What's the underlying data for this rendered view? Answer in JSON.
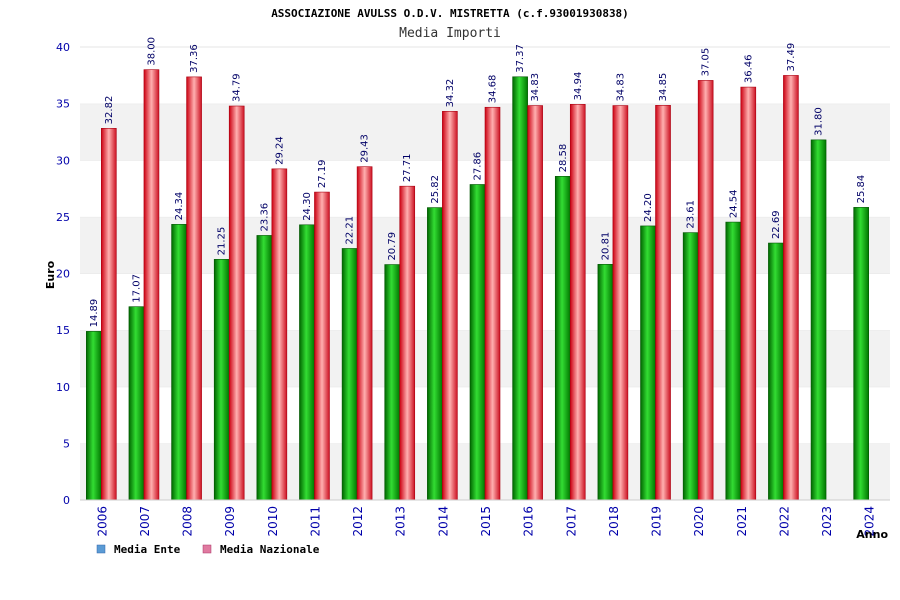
{
  "chart_data": {
    "type": "bar",
    "title": "ASSOCIAZIONE AVULSS O.D.V. MISTRETTA (c.f.93001930838)",
    "subtitle": "Media Importi",
    "xlabel": "Anno",
    "ylabel": "Euro",
    "ylim": [
      0,
      40
    ],
    "yticks": [
      0,
      5,
      10,
      15,
      20,
      25,
      30,
      35,
      40
    ],
    "categories": [
      "2006",
      "2007",
      "2008",
      "2009",
      "2010",
      "2011",
      "2012",
      "2013",
      "2014",
      "2015",
      "2016",
      "2017",
      "2018",
      "2019",
      "2020",
      "2021",
      "2022",
      "2023",
      "2024"
    ],
    "series": [
      {
        "name": "Media Ente",
        "values": [
          14.89,
          17.07,
          24.34,
          21.25,
          23.36,
          24.3,
          22.21,
          20.79,
          25.82,
          27.86,
          37.37,
          28.58,
          20.81,
          24.2,
          23.61,
          24.54,
          22.69,
          31.8,
          25.84
        ],
        "labels": [
          "14.89",
          "17.07",
          "24.34",
          "21.25",
          "23.36",
          "24.30",
          "22.21",
          "20.79",
          "25.82",
          "27.86",
          "37.37",
          "28.58",
          "20.81",
          "24.20",
          "23.61",
          "24.54",
          "22.69",
          "31.80",
          "25.84"
        ]
      },
      {
        "name": "Media Nazionale",
        "values": [
          32.82,
          38.0,
          37.36,
          34.79,
          29.24,
          27.19,
          29.43,
          27.71,
          34.32,
          34.68,
          34.83,
          34.94,
          34.83,
          34.85,
          37.05,
          36.46,
          37.49,
          null,
          null
        ],
        "labels": [
          "32.82",
          "38.00",
          "37.36",
          "34.79",
          "29.24",
          "27.19",
          "29.43",
          "27.71",
          "34.32",
          "34.68",
          "34.83",
          "34.94",
          "34.83",
          "34.85",
          "37.05",
          "36.46",
          "37.49",
          null,
          null
        ]
      }
    ],
    "legend": {
      "position": "bottom-left",
      "items": [
        {
          "label": "Media Ente",
          "color": "#5b9bd5"
        },
        {
          "label": "Media Nazionale",
          "color": "#e07aa0"
        }
      ]
    },
    "colors": {
      "ente_dark": "#007700",
      "ente_light": "#33dd33",
      "naz_dark": "#cc1122",
      "naz_light": "#ffaaaa",
      "band": "#f2f2f2",
      "tick_text": "#0000aa"
    }
  }
}
